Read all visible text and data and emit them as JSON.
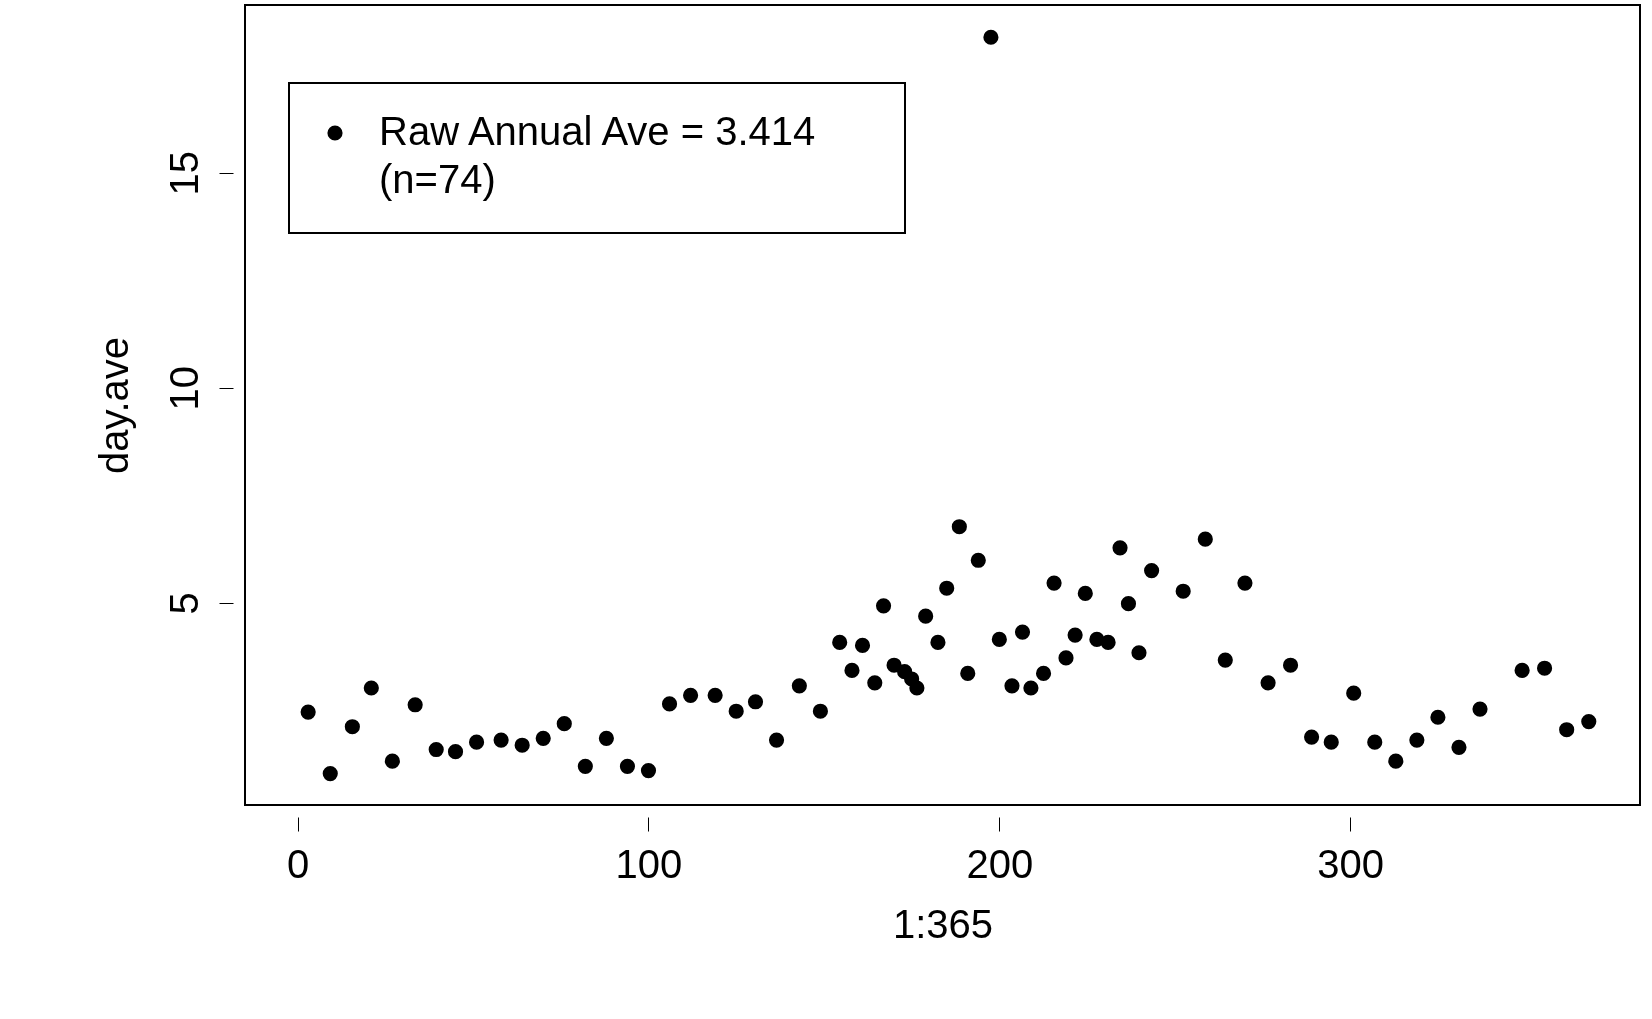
{
  "chart_data": {
    "type": "scatter",
    "xlabel": "1:365",
    "ylabel": "day.ave",
    "xlim": [
      -15,
      382.6
    ],
    "ylim": [
      0.3,
      18.9
    ],
    "xticks": [
      0,
      100,
      200,
      300
    ],
    "yticks": [
      5,
      10,
      15
    ],
    "grid": false,
    "legend": "top left",
    "marker": "circle",
    "series": [
      {
        "name": "Raw Annual Ave = 3.414\n(n=74)",
        "color": "#000000",
        "x": [
          3,
          9.3,
          15.6,
          21,
          27,
          33.5,
          39.5,
          45,
          51,
          58,
          64,
          70,
          76,
          82,
          88,
          94,
          100,
          106,
          112,
          119,
          125,
          130.5,
          136.5,
          143,
          149,
          154.5,
          158,
          161,
          164.5,
          167,
          170,
          173,
          175,
          176.5,
          179,
          182.5,
          185,
          188.6,
          191,
          194,
          197.6,
          200,
          203.6,
          206.6,
          209,
          212.6,
          215.6,
          219,
          221.6,
          224.5,
          227.8,
          231,
          234.4,
          236.8,
          239.8,
          243.4,
          252.4,
          258.7,
          264.4,
          270,
          276.6,
          283,
          289,
          294.6,
          301,
          307,
          313,
          319,
          325,
          331,
          337,
          349,
          355.4,
          361.7,
          368
        ],
        "values": [
          2.46,
          1.03,
          2.12,
          3.02,
          1.32,
          2.63,
          1.59,
          1.54,
          1.76,
          1.81,
          1.69,
          1.85,
          2.19,
          1.2,
          1.85,
          1.2,
          1.1,
          2.65,
          2.85,
          2.85,
          2.48,
          2.7,
          1.81,
          3.07,
          2.48,
          4.08,
          3.43,
          4.01,
          3.14,
          4.93,
          3.55,
          3.4,
          3.23,
          3.02,
          4.69,
          4.08,
          5.34,
          6.77,
          3.36,
          5.99,
          18.15,
          4.15,
          3.07,
          4.32,
          3.02,
          3.36,
          5.46,
          3.72,
          4.25,
          5.22,
          4.15,
          4.08,
          6.28,
          4.98,
          3.84,
          5.75,
          5.27,
          6.48,
          3.67,
          5.46,
          3.14,
          3.55,
          1.88,
          1.76,
          2.9,
          1.76,
          1.32,
          1.81,
          2.34,
          1.64,
          2.53,
          3.43,
          3.48,
          2.05,
          2.24
        ]
      }
    ]
  }
}
